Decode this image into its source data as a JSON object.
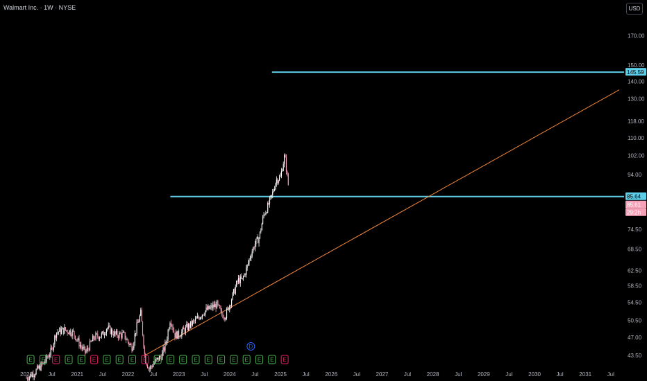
{
  "header": {
    "symbol_title": "Walmart Inc. · 1W · NYSE",
    "currency_button": "USD"
  },
  "colors": {
    "background": "#000000",
    "up": "#ffffff",
    "down": "#f7a1b8",
    "horizontal_line": "#5ecde7",
    "trend_line": "#f5883a",
    "axis_text": "#b2b5be",
    "earnings_badge": "#4caf50",
    "earnings_negative": "#e91e63",
    "dividend_badge": "#2962ff"
  },
  "chart_data": {
    "type": "candlestick",
    "y_axis": {
      "labels": [
        "170.00",
        "150.00",
        "140.00",
        "130.00",
        "118.00",
        "110.00",
        "102.00",
        "94.00",
        "80.50",
        "74.50",
        "68.50",
        "62.50",
        "58.50",
        "54.50",
        "50.50",
        "47.00",
        "43.50"
      ],
      "scale": "log"
    },
    "x_axis": {
      "labels": [
        "2020",
        "Jul",
        "2021",
        "Jul",
        "2022",
        "Jul",
        "2023",
        "Jul",
        "2024",
        "Jul",
        "2025",
        "Jul",
        "2026",
        "Jul",
        "2027",
        "Jul",
        "2028",
        "Jul",
        "2029",
        "Jul",
        "2030",
        "Jul",
        "2031",
        "Jul"
      ]
    },
    "price_tags": [
      {
        "label": "145.59",
        "value": 145.59,
        "color": "#5ecde7",
        "text_color": "#000000"
      },
      {
        "label": "85.64",
        "value": 85.64,
        "color": "#5ecde7",
        "text_color": "#000000"
      },
      {
        "label": "85.61",
        "value": 85.61,
        "color": "#f7a1b8",
        "text_color": "#ffffff"
      },
      {
        "label": "29:2h",
        "value": null,
        "color": "#f7a1b8",
        "text_color": "#ffffff"
      }
    ],
    "horizontal_lines": [
      {
        "value": 145.59,
        "from": "2024-11"
      },
      {
        "value": 85.64,
        "from": "2022-11"
      }
    ],
    "trend_line": {
      "from": {
        "date": "2022-05",
        "value": 43.5
      },
      "to": {
        "date": "2031-09",
        "value": 135
      }
    },
    "events": {
      "earnings_label": "E",
      "dividend_label": "D",
      "earnings": [
        {
          "date": "2020-02",
          "negative": false
        },
        {
          "date": "2020-05",
          "negative": false
        },
        {
          "date": "2020-08",
          "negative": true
        },
        {
          "date": "2020-11",
          "negative": false
        },
        {
          "date": "2021-02",
          "negative": false
        },
        {
          "date": "2021-05",
          "negative": true
        },
        {
          "date": "2021-08",
          "negative": false
        },
        {
          "date": "2021-11",
          "negative": false
        },
        {
          "date": "2022-02",
          "negative": false
        },
        {
          "date": "2022-05",
          "negative": true
        },
        {
          "date": "2022-08",
          "negative": false
        },
        {
          "date": "2022-11",
          "negative": false
        },
        {
          "date": "2023-02",
          "negative": false
        },
        {
          "date": "2023-05",
          "negative": false
        },
        {
          "date": "2023-08",
          "negative": false
        },
        {
          "date": "2023-11",
          "negative": false
        },
        {
          "date": "2024-02",
          "negative": false
        },
        {
          "date": "2024-05",
          "negative": false
        },
        {
          "date": "2024-08",
          "negative": false
        },
        {
          "date": "2024-11",
          "negative": false
        },
        {
          "date": "2025-02",
          "negative": true
        }
      ],
      "dividends": [
        {
          "date": "2024-06"
        }
      ]
    },
    "price_series": [
      [
        "2020-01",
        39.5
      ],
      [
        "2020-03",
        40.5
      ],
      [
        "2020-05",
        42
      ],
      [
        "2020-07",
        44.5
      ],
      [
        "2020-08",
        48
      ],
      [
        "2020-10",
        48.5
      ],
      [
        "2020-12",
        48
      ],
      [
        "2021-02",
        45
      ],
      [
        "2021-03",
        44
      ],
      [
        "2021-05",
        47
      ],
      [
        "2021-07",
        47.5
      ],
      [
        "2021-08",
        49
      ],
      [
        "2021-10",
        47.5
      ],
      [
        "2021-12",
        47.5
      ],
      [
        "2022-01",
        46
      ],
      [
        "2022-02",
        45
      ],
      [
        "2022-03",
        49
      ],
      [
        "2022-04",
        52
      ],
      [
        "2022-05",
        43
      ],
      [
        "2022-06",
        41
      ],
      [
        "2022-07",
        42
      ],
      [
        "2022-09",
        43.5
      ],
      [
        "2022-10",
        46
      ],
      [
        "2022-11",
        51
      ],
      [
        "2022-12",
        47.5
      ],
      [
        "2023-01",
        47.5
      ],
      [
        "2023-03",
        49
      ],
      [
        "2023-05",
        50.5
      ],
      [
        "2023-07",
        52.5
      ],
      [
        "2023-08",
        53
      ],
      [
        "2023-10",
        54
      ],
      [
        "2023-11",
        52
      ],
      [
        "2023-12",
        51.5
      ],
      [
        "2024-01",
        54
      ],
      [
        "2024-02",
        57
      ],
      [
        "2024-03",
        60
      ],
      [
        "2024-04",
        60
      ],
      [
        "2024-05",
        63
      ],
      [
        "2024-06",
        67
      ],
      [
        "2024-07",
        70
      ],
      [
        "2024-08",
        72
      ],
      [
        "2024-09",
        79
      ],
      [
        "2024-10",
        82
      ],
      [
        "2024-11",
        86
      ],
      [
        "2024-12",
        92
      ],
      [
        "2025-01",
        93
      ],
      [
        "2025-02",
        102
      ],
      [
        "2025-03",
        88
      ],
      [
        "2025-03",
        85.61
      ]
    ]
  }
}
